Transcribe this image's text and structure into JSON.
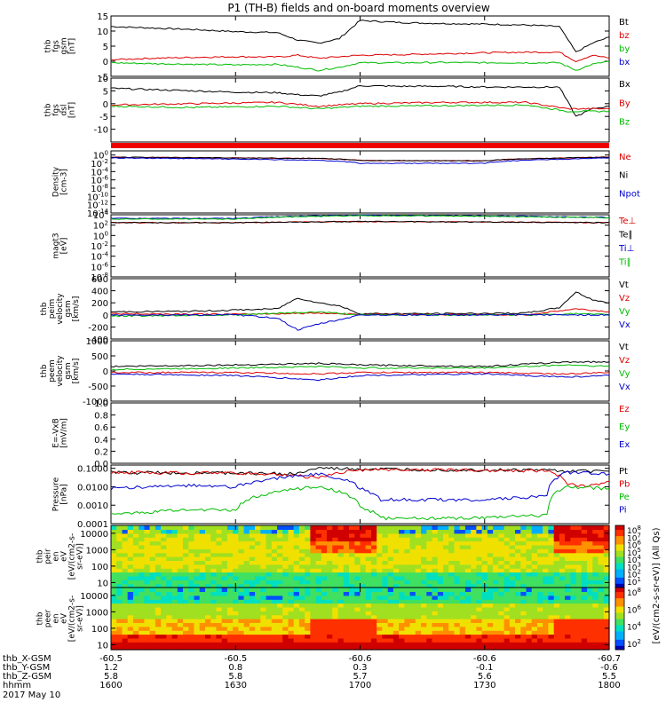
{
  "title": "P1 (TH-B) fields and on-board moments overview",
  "chart_data": {
    "type": "line",
    "title": "P1 (TH-B) fields and on-board moments overview",
    "date": "2017 May 10",
    "x_axis": {
      "label": "hhmm",
      "ticks": [
        "1600",
        "1630",
        "1700",
        "1730",
        "1800"
      ],
      "ephemeris": [
        {
          "name": "thb_X-GSM",
          "values": [
            "-60.5",
            "-60.5",
            "-60.6",
            "-60.6",
            "-60.7"
          ]
        },
        {
          "name": "thb_Y-GSM",
          "values": [
            "1.2",
            "0.8",
            "0.3",
            "-0.1",
            "-0.6"
          ]
        },
        {
          "name": "thb_Z-GSM",
          "values": [
            "5.8",
            "5.8",
            "5.7",
            "5.6",
            "5.5"
          ]
        }
      ]
    },
    "panels": [
      {
        "id": "fgs_gsm",
        "ylabel": [
          "thb",
          "fgs",
          "gsm",
          "[nT]"
        ],
        "ylim": [
          -5,
          15
        ],
        "yticks": [
          "15",
          "10",
          "5",
          "0",
          "-5"
        ],
        "series": [
          {
            "name": "Bt",
            "color": "#000000",
            "x": [
              1600,
              1610,
              1620,
              1630,
              1640,
              1645,
              1650,
              1655,
              1700,
              1710,
              1720,
              1730,
              1740,
              1748,
              1752,
              1756,
              1800
            ],
            "y": [
              11.5,
              11,
              10.5,
              9.8,
              9.5,
              7,
              6,
              7.5,
              13.5,
              12.8,
              12.5,
              12.3,
              12,
              11.5,
              3,
              6,
              8
            ]
          },
          {
            "name": "bz",
            "color": "#dd0000",
            "x": [
              1600,
              1610,
              1620,
              1630,
              1640,
              1645,
              1650,
              1655,
              1700,
              1710,
              1720,
              1730,
              1740,
              1748,
              1752,
              1756,
              1800
            ],
            "y": [
              0.5,
              1,
              1.3,
              1.5,
              1.4,
              2,
              1,
              1.5,
              2,
              2.2,
              2.5,
              2.8,
              3,
              3,
              0,
              2,
              1
            ]
          },
          {
            "name": "by",
            "color": "#00bb00",
            "x": [
              1600,
              1610,
              1620,
              1630,
              1640,
              1645,
              1650,
              1655,
              1700,
              1710,
              1720,
              1730,
              1740,
              1748,
              1752,
              1756,
              1800
            ],
            "y": [
              -0.5,
              -0.8,
              -1,
              -1.2,
              -1,
              -2,
              -3,
              -2,
              -0.5,
              -0.5,
              -0.4,
              -0.5,
              -0.5,
              -0.5,
              -3,
              -1,
              0
            ]
          },
          {
            "name": "bx",
            "color": "#0000cc",
            "x": [],
            "y": []
          }
        ]
      },
      {
        "id": "fgs_dsl",
        "ylabel": [
          "thb",
          "fgs",
          "dsl",
          "[nT]"
        ],
        "ylim": [
          -15,
          10
        ],
        "yticks": [
          "10",
          "5",
          "0",
          "-5",
          "-10"
        ],
        "series": [
          {
            "name": "Bx",
            "color": "#000000",
            "x": [
              1600,
              1610,
              1620,
              1630,
              1640,
              1645,
              1650,
              1655,
              1700,
              1710,
              1720,
              1730,
              1740,
              1748,
              1752,
              1756,
              1800
            ],
            "y": [
              6,
              5.5,
              5,
              4.5,
              4.3,
              3.5,
              3,
              4.5,
              7,
              6.8,
              6.8,
              6.5,
              6.5,
              6.5,
              -5,
              -2,
              -1
            ]
          },
          {
            "name": "By",
            "color": "#dd0000",
            "x": [
              1600,
              1620,
              1640,
              1650,
              1700,
              1720,
              1740,
              1750,
              1800
            ],
            "y": [
              -0.5,
              0,
              0.5,
              -1,
              0,
              0.5,
              0.5,
              -2,
              -2
            ]
          },
          {
            "name": "Bz",
            "color": "#00bb00",
            "x": [
              1600,
              1620,
              1640,
              1650,
              1700,
              1720,
              1740,
              1750,
              1800
            ],
            "y": [
              -1,
              -1.5,
              -1,
              -2,
              -1,
              -0.8,
              -0.5,
              -3,
              -3
            ]
          }
        ]
      },
      {
        "id": "density",
        "ylabel": [
          "Density",
          "[cm-3]"
        ],
        "scale": "log",
        "ylim": [
          1e-14,
          10
        ],
        "yticks": [
          "10^0",
          "10^-2",
          "10^-4",
          "10^-6",
          "10^-8",
          "10^-10",
          "10^-12",
          "10^-14"
        ],
        "series": [
          {
            "name": "Ne",
            "color": "#dd0000",
            "x": [
              1600,
              1630,
              1650,
              1700,
              1730,
              1750,
              1800
            ],
            "y": [
              0.3,
              0.2,
              0.15,
              0.05,
              0.04,
              0.2,
              0.3
            ]
          },
          {
            "name": "Ni",
            "color": "#000000",
            "x": [
              1600,
              1630,
              1650,
              1700,
              1730,
              1750,
              1800
            ],
            "y": [
              0.3,
              0.2,
              0.15,
              0.05,
              0.04,
              0.2,
              0.3
            ]
          },
          {
            "name": "Npot",
            "color": "#0000cc",
            "x": [
              1600,
              1630,
              1650,
              1700,
              1730,
              1750,
              1800
            ],
            "y": [
              0.2,
              0.1,
              0.05,
              0.01,
              0.01,
              0.1,
              0.2
            ]
          }
        ]
      },
      {
        "id": "temperature",
        "ylabel": [
          "magt3",
          "[eV]"
        ],
        "scale": "log",
        "ylim": [
          1e-08,
          10000.0
        ],
        "yticks": [
          "10^4",
          "10^2",
          "10^0",
          "10^-2",
          "10^-4",
          "10^-6",
          "10^-8"
        ],
        "series": [
          {
            "name": "Te⊥",
            "color": "#dd0000",
            "x": [
              1600,
              1630,
              1700,
              1730,
              1800
            ],
            "y": [
              300,
              300,
              500,
              400,
              300
            ]
          },
          {
            "name": "Te∥",
            "color": "#000000",
            "x": [
              1600,
              1630,
              1700,
              1730,
              1800
            ],
            "y": [
              300,
              300,
              500,
              400,
              300
            ]
          },
          {
            "name": "Ti⊥",
            "color": "#0000cc",
            "x": [
              1600,
              1630,
              1700,
              1730,
              1800
            ],
            "y": [
              2000,
              2000,
              8000,
              6000,
              3000
            ]
          },
          {
            "name": "Ti∥",
            "color": "#00bb00",
            "x": [
              1600,
              1630,
              1700,
              1730,
              1800
            ],
            "y": [
              1500,
              1500,
              7000,
              5000,
              2500
            ]
          }
        ]
      },
      {
        "id": "peim_velocity",
        "ylabel": [
          "thb",
          "peim",
          "velocity",
          "gsm",
          "[km/s]"
        ],
        "ylim": [
          -400,
          600
        ],
        "yticks": [
          "600",
          "400",
          "200",
          "0",
          "-200",
          "-400"
        ],
        "series": [
          {
            "name": "Vt",
            "color": "#000000",
            "x": [
              1600,
              1620,
              1640,
              1645,
              1650,
              1655,
              1700,
              1720,
              1740,
              1748,
              1752,
              1756,
              1800
            ],
            "y": [
              50,
              60,
              100,
              280,
              200,
              150,
              20,
              20,
              30,
              120,
              380,
              250,
              200
            ]
          },
          {
            "name": "Vz",
            "color": "#dd0000",
            "x": [
              1600,
              1630,
              1650,
              1700,
              1740,
              1752,
              1800
            ],
            "y": [
              20,
              10,
              30,
              10,
              0,
              100,
              50
            ]
          },
          {
            "name": "Vy",
            "color": "#00bb00",
            "x": [
              1600,
              1630,
              1650,
              1700,
              1740,
              1752,
              1800
            ],
            "y": [
              -20,
              0,
              50,
              0,
              0,
              20,
              0
            ]
          },
          {
            "name": "Vx",
            "color": "#0000cc",
            "x": [
              1600,
              1630,
              1640,
              1645,
              1650,
              1655,
              1700,
              1740,
              1800
            ],
            "y": [
              0,
              0,
              -50,
              -250,
              -150,
              -80,
              0,
              0,
              0
            ]
          }
        ]
      },
      {
        "id": "peem_velocity",
        "ylabel": [
          "thb",
          "peem",
          "velocity",
          "gsm",
          "[km/s]"
        ],
        "ylim": [
          -1000,
          1000
        ],
        "yticks": [
          "1000",
          "500",
          "0",
          "-500",
          "-1000"
        ],
        "series": [
          {
            "name": "Vt",
            "color": "#000000",
            "x": [
              1600,
              1630,
              1650,
              1700,
              1730,
              1750,
              1800
            ],
            "y": [
              150,
              200,
              250,
              200,
              150,
              300,
              300
            ]
          },
          {
            "name": "Vz",
            "color": "#dd0000",
            "x": [
              1600,
              1630,
              1650,
              1700,
              1730,
              1750,
              1800
            ],
            "y": [
              -50,
              -50,
              -100,
              -50,
              -50,
              -100,
              -50
            ]
          },
          {
            "name": "Vy",
            "color": "#00bb00",
            "x": [
              1600,
              1630,
              1650,
              1700,
              1730,
              1750,
              1800
            ],
            "y": [
              50,
              100,
              150,
              100,
              100,
              200,
              150
            ]
          },
          {
            "name": "Vx",
            "color": "#0000cc",
            "x": [
              1600,
              1630,
              1650,
              1700,
              1730,
              1750,
              1800
            ],
            "y": [
              -100,
              -150,
              -300,
              -150,
              -100,
              -200,
              -150
            ]
          }
        ]
      },
      {
        "id": "efield",
        "ylabel": [
          "E=-VxB",
          "[mV/m]"
        ],
        "ylim": [
          0,
          1
        ],
        "yticks": [
          "1.0",
          "0.8",
          "0.6",
          "0.4",
          "0.2",
          "0.0"
        ],
        "series": [
          {
            "name": "Ez",
            "color": "#dd0000",
            "x": [],
            "y": []
          },
          {
            "name": "Ey",
            "color": "#00bb00",
            "x": [],
            "y": []
          },
          {
            "name": "Ex",
            "color": "#0000cc",
            "x": [],
            "y": []
          }
        ]
      },
      {
        "id": "pressure",
        "ylabel": [
          "Pressure",
          "[nPa]"
        ],
        "scale": "log",
        "ylim": [
          0.0001,
          0.15
        ],
        "yticks": [
          "0.1000",
          "0.0100",
          "0.0010",
          "0.0001"
        ],
        "series": [
          {
            "name": "Pt",
            "color": "#000000",
            "x": [
              1600,
              1630,
              1645,
              1650,
              1700,
              1730,
              1745,
              1750,
              1800
            ],
            "y": [
              0.06,
              0.055,
              0.05,
              0.1,
              0.09,
              0.08,
              0.08,
              0.07,
              0.07
            ]
          },
          {
            "name": "Pb",
            "color": "#dd0000",
            "x": [
              1600,
              1630,
              1645,
              1650,
              1700,
              1730,
              1745,
              1750,
              1755,
              1800
            ],
            "y": [
              0.06,
              0.055,
              0.04,
              0.03,
              0.085,
              0.08,
              0.075,
              0.015,
              0.01,
              0.02
            ]
          },
          {
            "name": "Pe",
            "color": "#00bb00",
            "x": [
              1600,
              1620,
              1630,
              1645,
              1650,
              1700,
              1705,
              1730,
              1745,
              1750,
              1800
            ],
            "y": [
              0.0003,
              0.0006,
              0.0005,
              0.008,
              0.01,
              0.0008,
              0.0002,
              0.0002,
              0.0003,
              0.01,
              0.008
            ]
          },
          {
            "name": "Pi",
            "color": "#0000cc",
            "x": [
              1600,
              1620,
              1630,
              1645,
              1650,
              1700,
              1705,
              1730,
              1745,
              1750,
              1800
            ],
            "y": [
              0.008,
              0.012,
              0.01,
              0.04,
              0.05,
              0.008,
              0.002,
              0.002,
              0.003,
              0.06,
              0.05
            ]
          }
        ]
      },
      {
        "id": "peir_spectrogram",
        "type": "heatmap",
        "ylabel": [
          "thb",
          "peir",
          "en",
          "eV",
          "[eV/(cm2-s-",
          "sr-eV)]"
        ],
        "ylabel_rot": "efluxes",
        "scale": "log",
        "ylim": [
          5,
          30000
        ],
        "yticks": [
          "10000",
          "1000",
          "100",
          "10"
        ],
        "colorbar": {
          "ticks": [
            "10^8",
            "10^7",
            "10^6",
            "10^5",
            "10^4",
            "10^3",
            "10^2",
            "10^1"
          ]
        }
      },
      {
        "id": "peer_spectrogram",
        "type": "heatmap",
        "ylabel": [
          "thb",
          "peer",
          "en",
          "eV",
          "[eV/(cm2-s-",
          "sr-eV)]"
        ],
        "ylabel_rot": "efluxes",
        "scale": "log",
        "ylim": [
          5,
          30000
        ],
        "yticks": [
          "10000",
          "1000",
          "100",
          "10"
        ],
        "colorbar": {
          "ticks": [
            "10^8",
            "10^6",
            "10^4",
            "10^2"
          ]
        }
      }
    ],
    "colorbar_label": "[eV/(cm2-s-sr-eV)] (All Qs)",
    "colorbar_label_2": "[eV/(cm2-s-sr-eV)]"
  }
}
